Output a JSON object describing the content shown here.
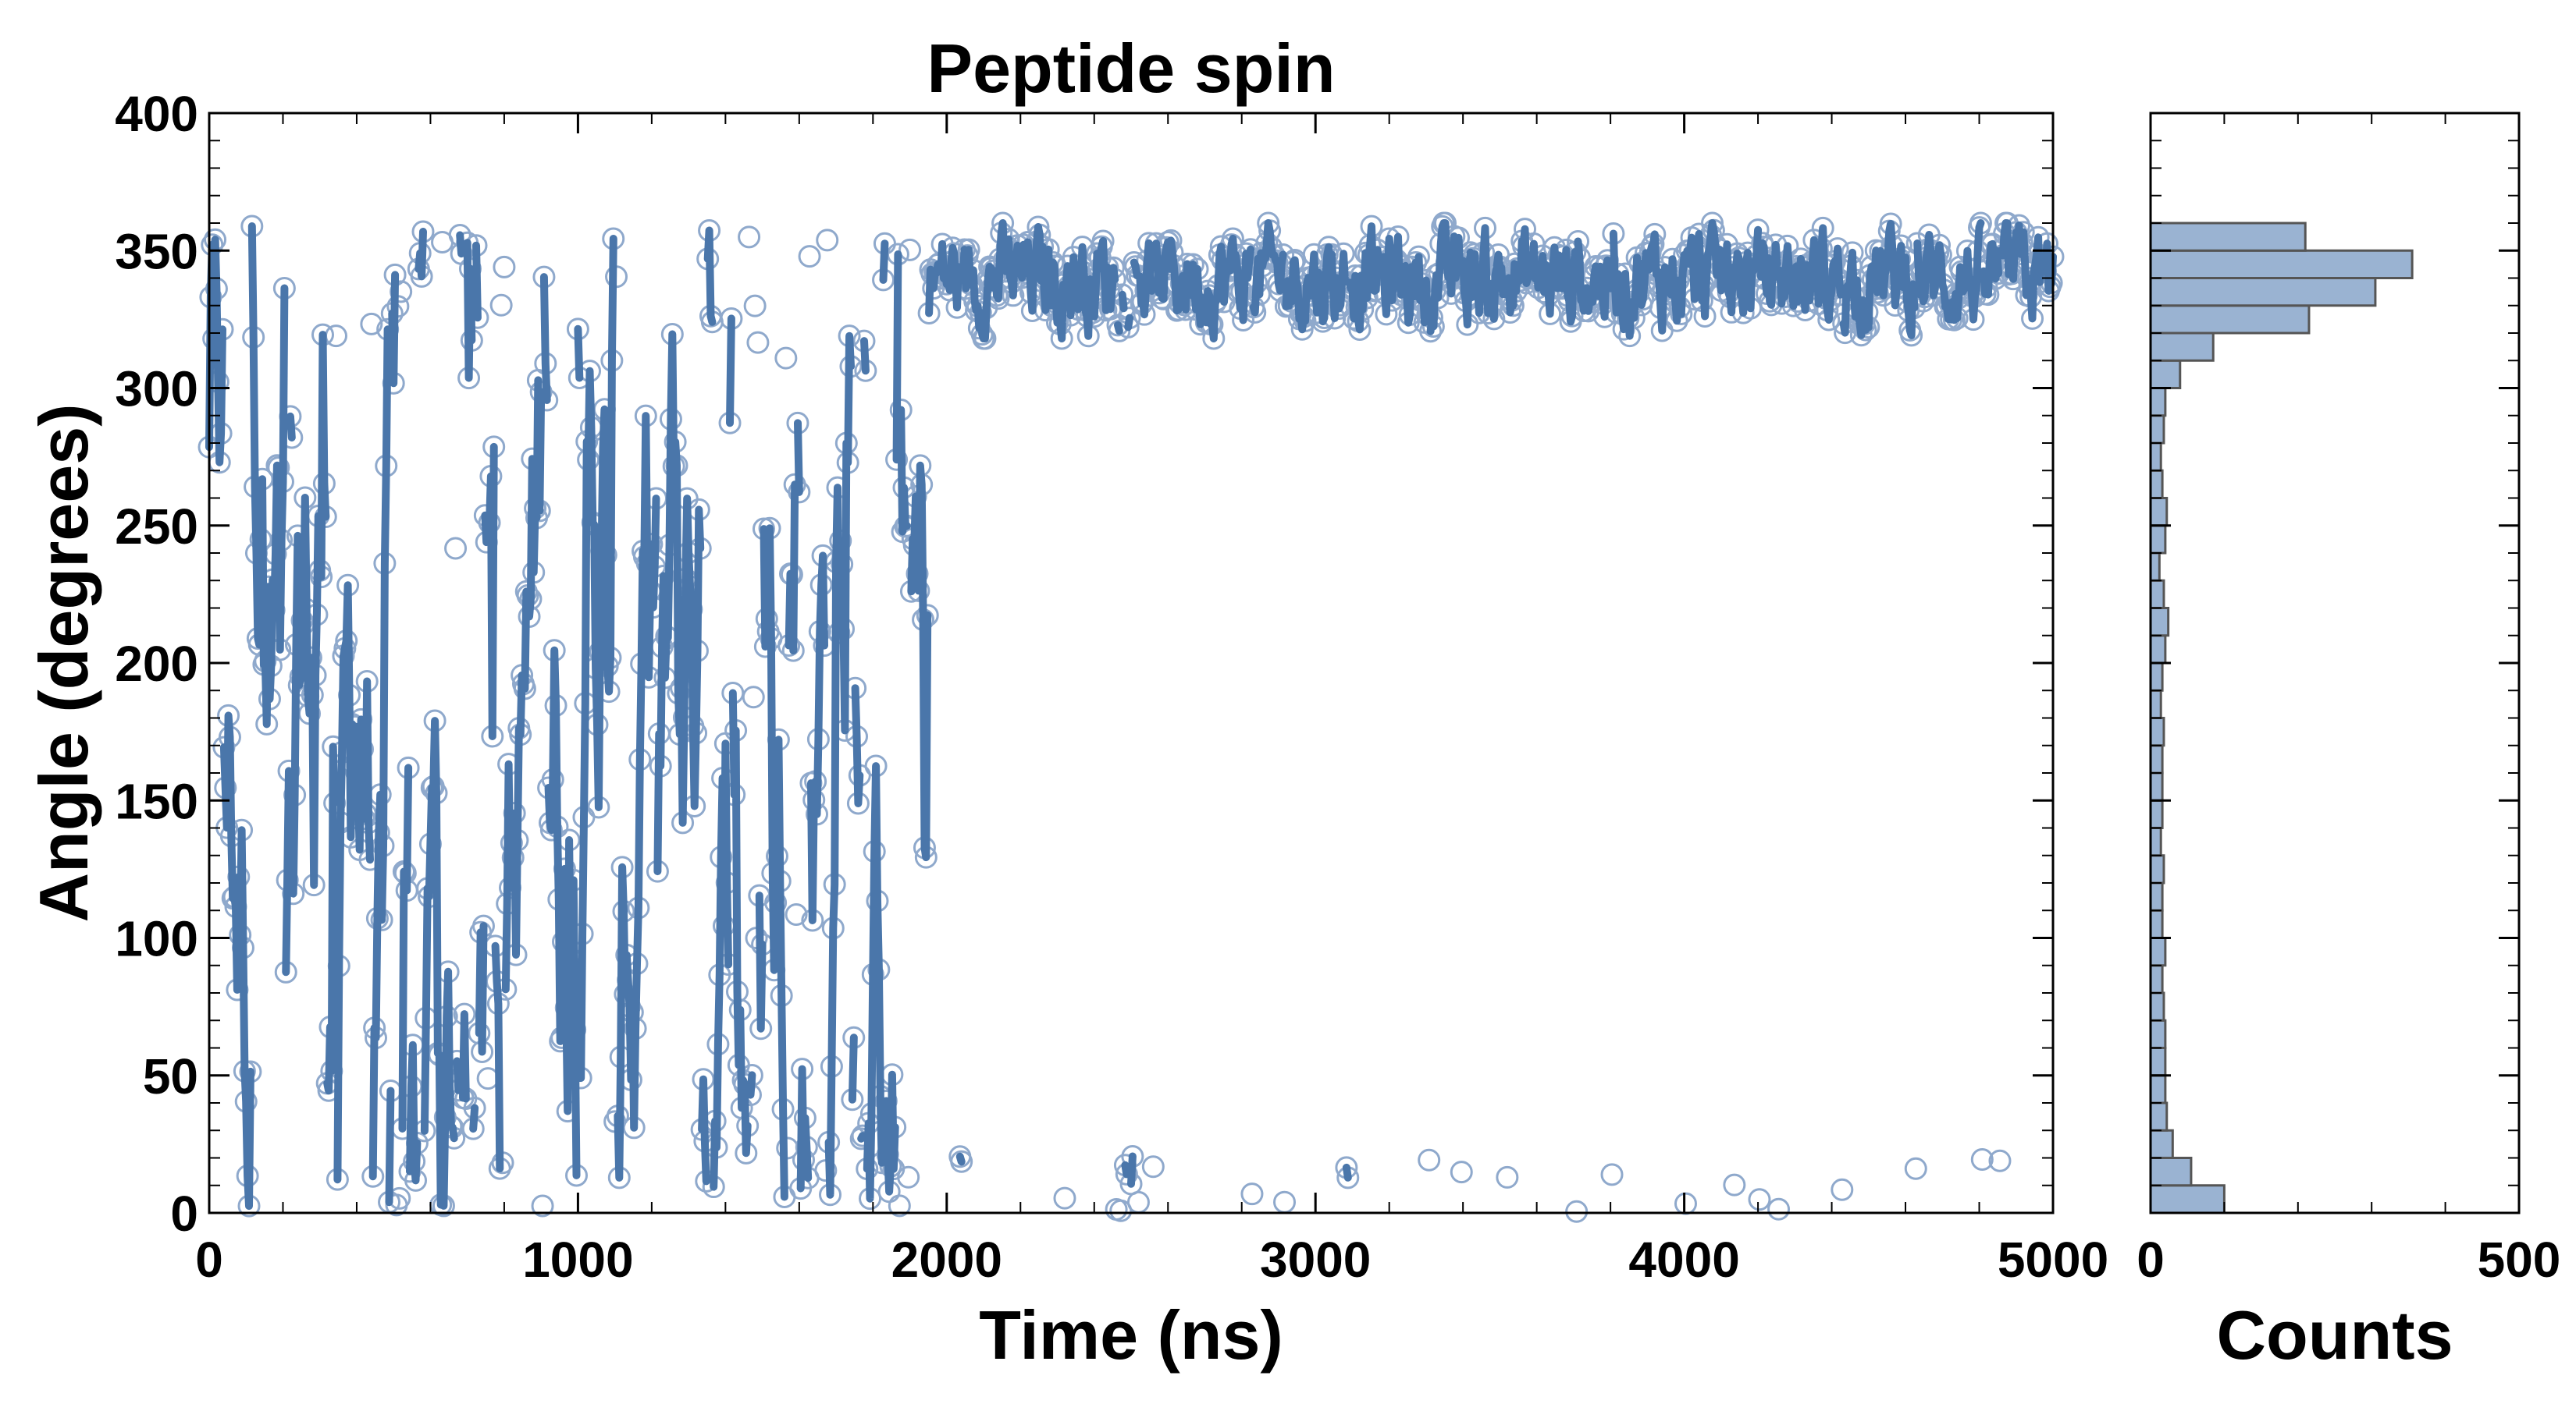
{
  "chart_data": [
    {
      "type": "scatter",
      "title": "Peptide spin",
      "xlabel": "Time (ns)",
      "ylabel": "Angle (degrees)",
      "xlim": [
        0,
        5000
      ],
      "ylim": [
        0,
        400
      ],
      "xticks": [
        "0",
        "1000",
        "2000",
        "3000",
        "4000",
        "5000"
      ],
      "yticks": [
        "0",
        "50",
        "100",
        "150",
        "200",
        "250",
        "300",
        "350",
        "400"
      ],
      "grid": false,
      "series": [
        {
          "style": "open-circle markers with thick connecting line segments",
          "color": "#4a76aa",
          "segments": [
            {
              "x_range": [
                0,
                1950
              ],
              "y_range": [
                0,
                360
              ],
              "behavior": "random spinning across full range"
            },
            {
              "x_range": [
                1950,
                5000
              ],
              "y_range": [
                320,
                360
              ],
              "behavior": "locked near ~340 degrees"
            },
            {
              "x_range": [
                1950,
                5000
              ],
              "y_range": [
                0,
                25
              ],
              "behavior": "wrapped points near 0 degrees"
            }
          ]
        }
      ]
    },
    {
      "type": "bar",
      "orientation": "horizontal",
      "xlabel": "Counts",
      "xlim": [
        0,
        500
      ],
      "xticks": [
        "0",
        "500"
      ],
      "ylim": [
        0,
        400
      ],
      "bin_width": 10,
      "color": "#9ab3d2",
      "edge_color": "#555555",
      "bins": [
        {
          "y": 0,
          "count": 100
        },
        {
          "y": 10,
          "count": 55
        },
        {
          "y": 20,
          "count": 30
        },
        {
          "y": 30,
          "count": 22
        },
        {
          "y": 40,
          "count": 20
        },
        {
          "y": 50,
          "count": 20
        },
        {
          "y": 60,
          "count": 20
        },
        {
          "y": 70,
          "count": 18
        },
        {
          "y": 80,
          "count": 16
        },
        {
          "y": 90,
          "count": 20
        },
        {
          "y": 100,
          "count": 16
        },
        {
          "y": 110,
          "count": 16
        },
        {
          "y": 120,
          "count": 18
        },
        {
          "y": 130,
          "count": 14
        },
        {
          "y": 140,
          "count": 16
        },
        {
          "y": 150,
          "count": 16
        },
        {
          "y": 160,
          "count": 16
        },
        {
          "y": 170,
          "count": 18
        },
        {
          "y": 180,
          "count": 14
        },
        {
          "y": 190,
          "count": 16
        },
        {
          "y": 200,
          "count": 20
        },
        {
          "y": 210,
          "count": 24
        },
        {
          "y": 220,
          "count": 18
        },
        {
          "y": 230,
          "count": 12
        },
        {
          "y": 240,
          "count": 20
        },
        {
          "y": 250,
          "count": 22
        },
        {
          "y": 260,
          "count": 16
        },
        {
          "y": 270,
          "count": 14
        },
        {
          "y": 280,
          "count": 18
        },
        {
          "y": 290,
          "count": 20
        },
        {
          "y": 300,
          "count": 40
        },
        {
          "y": 310,
          "count": 85
        },
        {
          "y": 320,
          "count": 215
        },
        {
          "y": 330,
          "count": 305
        },
        {
          "y": 340,
          "count": 355
        },
        {
          "y": 350,
          "count": 210
        },
        {
          "y": 360,
          "count": 0
        },
        {
          "y": 370,
          "count": 0
        },
        {
          "y": 380,
          "count": 0
        },
        {
          "y": 390,
          "count": 0
        }
      ]
    }
  ]
}
